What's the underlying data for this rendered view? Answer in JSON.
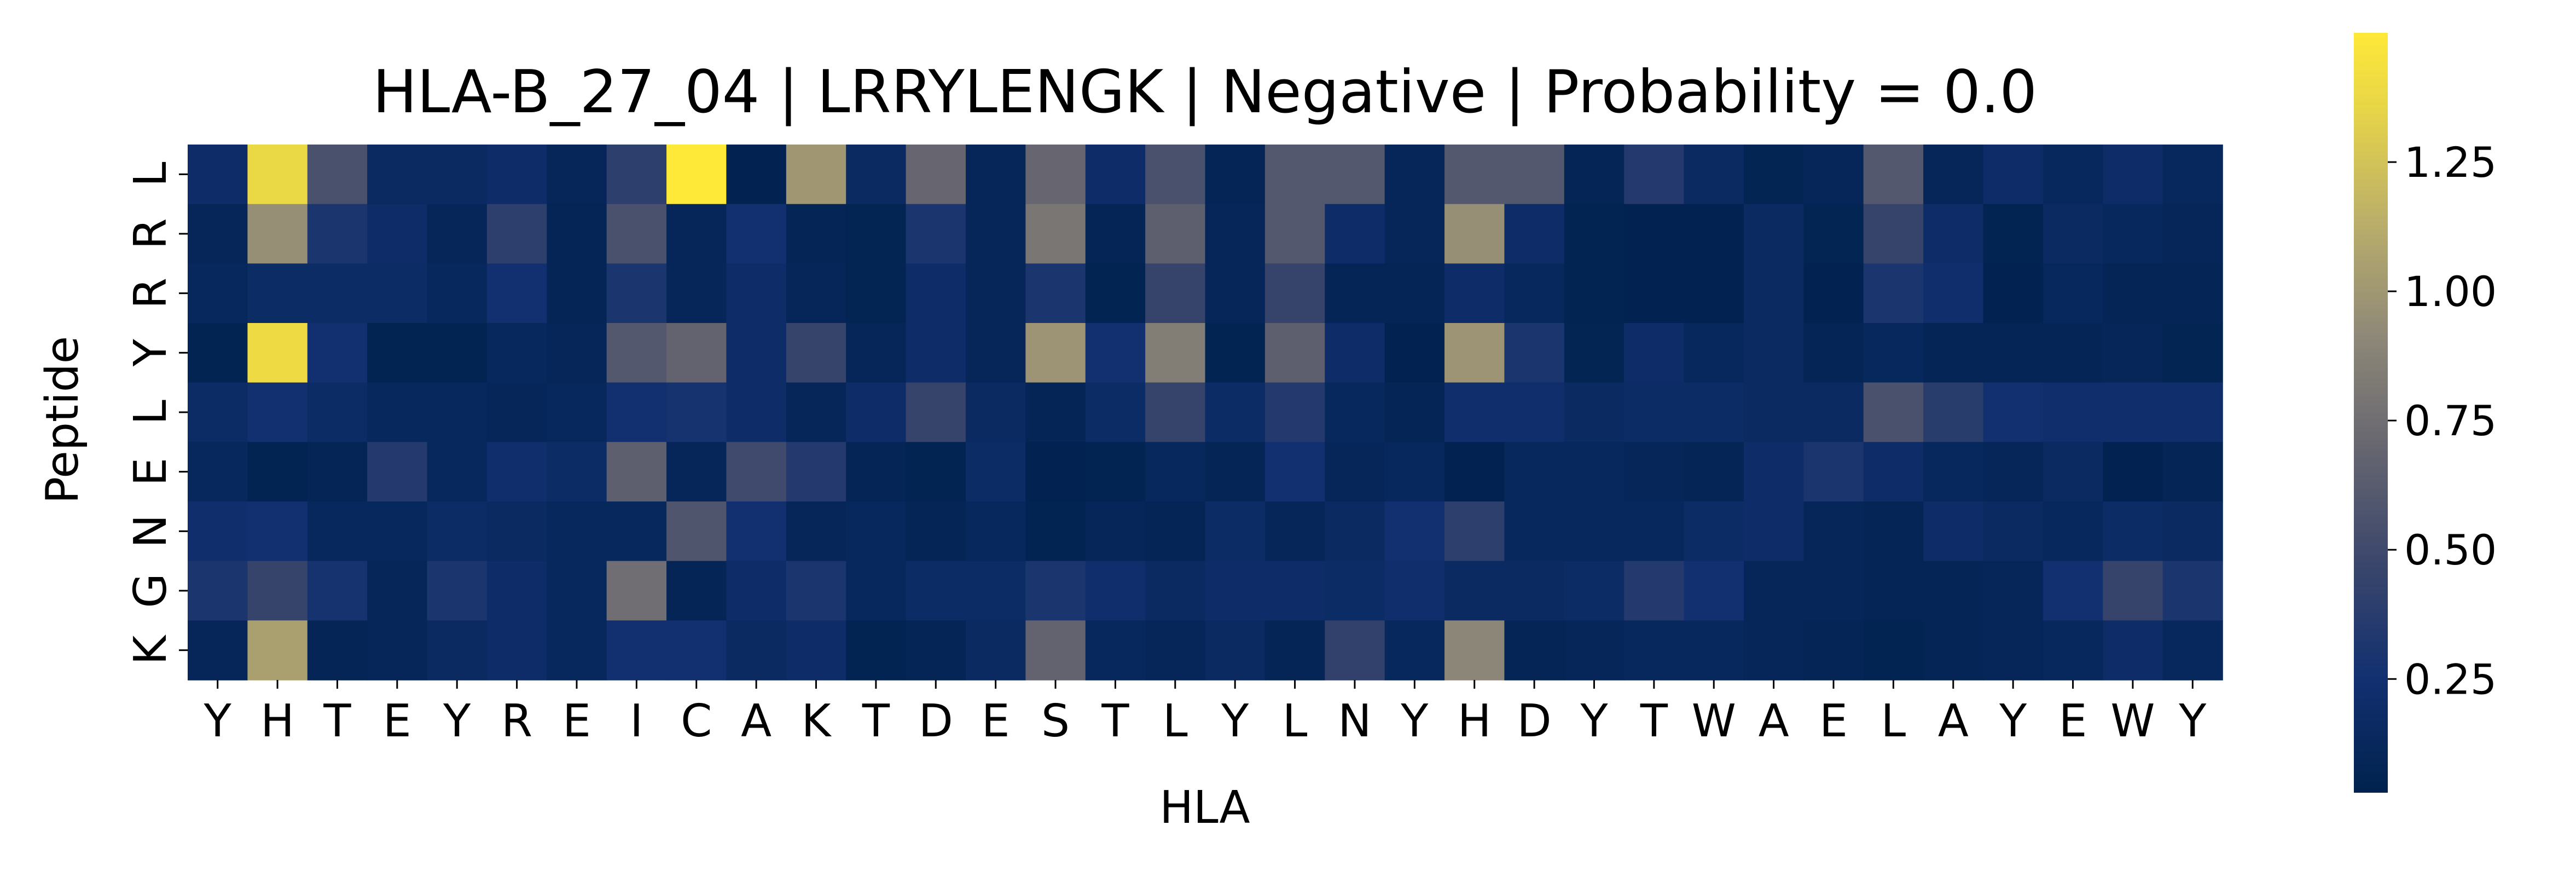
{
  "chart_data": {
    "type": "heatmap",
    "title": "HLA-B_27_04 | LRRYLENGK | Negative | Probability = 0.0",
    "xlabel": "HLA",
    "ylabel": "Peptide",
    "x_categories": [
      "Y",
      "H",
      "T",
      "E",
      "Y",
      "R",
      "E",
      "I",
      "C",
      "A",
      "K",
      "T",
      "D",
      "E",
      "S",
      "T",
      "L",
      "Y",
      "L",
      "N",
      "Y",
      "H",
      "D",
      "Y",
      "T",
      "W",
      "A",
      "E",
      "L",
      "A",
      "Y",
      "E",
      "W",
      "Y"
    ],
    "y_categories": [
      "L",
      "R",
      "R",
      "Y",
      "L",
      "E",
      "N",
      "G",
      "K"
    ],
    "values": [
      [
        0.2,
        1.38,
        0.55,
        0.15,
        0.15,
        0.2,
        0.1,
        0.4,
        1.5,
        0.05,
        1.0,
        0.15,
        0.7,
        0.1,
        0.7,
        0.2,
        0.55,
        0.08,
        0.6,
        0.6,
        0.1,
        0.6,
        0.6,
        0.08,
        0.35,
        0.15,
        0.07,
        0.1,
        0.6,
        0.1,
        0.2,
        0.12,
        0.2,
        0.12
      ],
      [
        0.1,
        0.95,
        0.3,
        0.2,
        0.1,
        0.4,
        0.08,
        0.55,
        0.1,
        0.25,
        0.08,
        0.07,
        0.3,
        0.1,
        0.8,
        0.08,
        0.65,
        0.1,
        0.6,
        0.2,
        0.1,
        0.95,
        0.2,
        0.06,
        0.05,
        0.05,
        0.15,
        0.07,
        0.45,
        0.2,
        0.06,
        0.15,
        0.12,
        0.1
      ],
      [
        0.12,
        0.18,
        0.18,
        0.18,
        0.12,
        0.25,
        0.08,
        0.3,
        0.1,
        0.2,
        0.1,
        0.07,
        0.2,
        0.1,
        0.3,
        0.06,
        0.45,
        0.1,
        0.45,
        0.08,
        0.08,
        0.2,
        0.12,
        0.06,
        0.05,
        0.05,
        0.15,
        0.05,
        0.3,
        0.22,
        0.05,
        0.12,
        0.08,
        0.08
      ],
      [
        0.06,
        1.4,
        0.25,
        0.06,
        0.06,
        0.12,
        0.1,
        0.6,
        0.68,
        0.2,
        0.45,
        0.1,
        0.2,
        0.1,
        0.98,
        0.25,
        0.85,
        0.06,
        0.65,
        0.2,
        0.05,
        0.98,
        0.3,
        0.07,
        0.2,
        0.12,
        0.15,
        0.08,
        0.12,
        0.08,
        0.08,
        0.08,
        0.1,
        0.07
      ],
      [
        0.18,
        0.25,
        0.18,
        0.12,
        0.12,
        0.1,
        0.12,
        0.25,
        0.28,
        0.2,
        0.1,
        0.2,
        0.45,
        0.15,
        0.08,
        0.18,
        0.45,
        0.18,
        0.35,
        0.12,
        0.08,
        0.22,
        0.22,
        0.15,
        0.18,
        0.18,
        0.15,
        0.15,
        0.55,
        0.38,
        0.25,
        0.22,
        0.22,
        0.22
      ],
      [
        0.12,
        0.06,
        0.08,
        0.35,
        0.12,
        0.22,
        0.18,
        0.65,
        0.1,
        0.5,
        0.35,
        0.08,
        0.06,
        0.18,
        0.05,
        0.06,
        0.12,
        0.08,
        0.25,
        0.1,
        0.12,
        0.05,
        0.12,
        0.12,
        0.1,
        0.08,
        0.2,
        0.3,
        0.2,
        0.12,
        0.1,
        0.15,
        0.05,
        0.08
      ],
      [
        0.22,
        0.25,
        0.12,
        0.12,
        0.18,
        0.15,
        0.12,
        0.12,
        0.58,
        0.25,
        0.1,
        0.12,
        0.08,
        0.12,
        0.06,
        0.1,
        0.08,
        0.18,
        0.1,
        0.15,
        0.25,
        0.4,
        0.12,
        0.12,
        0.12,
        0.18,
        0.2,
        0.1,
        0.08,
        0.2,
        0.15,
        0.12,
        0.18,
        0.15
      ],
      [
        0.3,
        0.45,
        0.28,
        0.1,
        0.3,
        0.2,
        0.12,
        0.75,
        0.08,
        0.2,
        0.3,
        0.12,
        0.18,
        0.18,
        0.3,
        0.22,
        0.15,
        0.2,
        0.2,
        0.18,
        0.22,
        0.15,
        0.15,
        0.18,
        0.35,
        0.25,
        0.1,
        0.1,
        0.08,
        0.08,
        0.1,
        0.25,
        0.45,
        0.3
      ],
      [
        0.1,
        1.05,
        0.08,
        0.1,
        0.15,
        0.2,
        0.12,
        0.25,
        0.25,
        0.15,
        0.2,
        0.06,
        0.08,
        0.15,
        0.68,
        0.12,
        0.1,
        0.15,
        0.08,
        0.42,
        0.12,
        0.9,
        0.08,
        0.1,
        0.12,
        0.12,
        0.1,
        0.08,
        0.06,
        0.08,
        0.1,
        0.12,
        0.2,
        0.12
      ]
    ],
    "vmin": 0.03,
    "vmax": 1.5,
    "colormap": "cividis",
    "colorbar_ticks": [
      0.25,
      0.5,
      0.75,
      1.0,
      1.25
    ],
    "colorbar_tick_labels": [
      "0.25",
      "0.50",
      "0.75",
      "1.00",
      "1.25"
    ],
    "grid": false,
    "legend": "colorbar-right"
  }
}
